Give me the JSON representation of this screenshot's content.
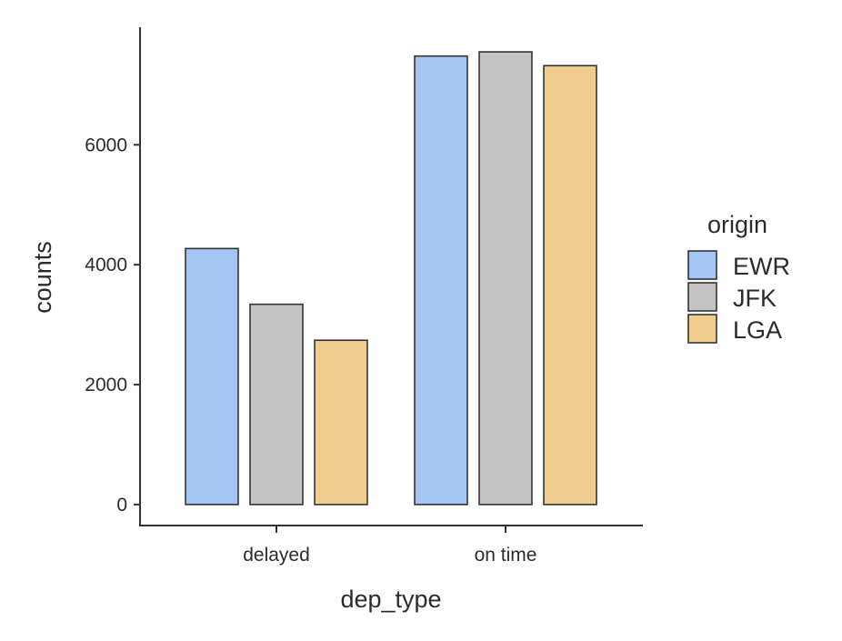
{
  "chart_data": {
    "type": "bar",
    "xlabel": "dep_type",
    "ylabel": "counts",
    "categories": [
      "delayed",
      "on time"
    ],
    "series": [
      {
        "name": "EWR",
        "color": "#a4c4f2",
        "values": [
          4270,
          7480
        ]
      },
      {
        "name": "JFK",
        "color": "#c4c4c4",
        "values": [
          3340,
          7550
        ]
      },
      {
        "name": "LGA",
        "color": "#f0cd8c",
        "values": [
          2740,
          7320
        ]
      }
    ],
    "yticks": [
      0,
      2000,
      4000,
      6000
    ],
    "ylim": [
      -350,
      7960
    ],
    "grid": false,
    "legend": {
      "title": "origin",
      "position": "right"
    }
  }
}
